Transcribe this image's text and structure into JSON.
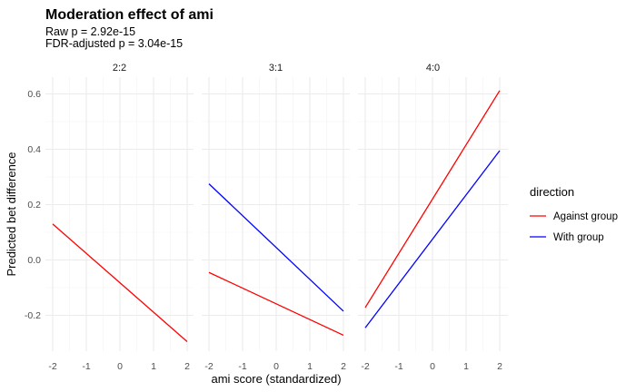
{
  "chart_data": {
    "type": "line",
    "title": "Moderation effect of ami",
    "subtitle_lines": [
      "Raw p = 2.92e-15",
      "FDR-adjusted p = 3.04e-15"
    ],
    "xlabel": "ami score (standardized)",
    "ylabel": "Predicted bet difference",
    "xlim": [
      -2,
      2
    ],
    "ylim": [
      -0.3,
      0.61
    ],
    "x_ticks": [
      "-2",
      "-1",
      "0",
      "1",
      "2"
    ],
    "y_ticks": [
      "-0.2",
      "0.0",
      "0.2",
      "0.4",
      "0.6"
    ],
    "grid": true,
    "legend": {
      "title": "direction",
      "position": "right",
      "entries": [
        {
          "name": "Against group",
          "color": "#ff0000"
        },
        {
          "name": "With group",
          "color": "#0000ff"
        }
      ]
    },
    "facets": [
      {
        "label": "2:2",
        "series": [
          {
            "name": "Against group",
            "x": [
              -2,
              2
            ],
            "y": [
              0.13,
              -0.295
            ]
          }
        ]
      },
      {
        "label": "3:1",
        "series": [
          {
            "name": "Against group",
            "x": [
              -2,
              2
            ],
            "y": [
              -0.045,
              -0.272
            ]
          },
          {
            "name": "With group",
            "x": [
              -2,
              2
            ],
            "y": [
              0.275,
              -0.185
            ]
          }
        ]
      },
      {
        "label": "4:0",
        "series": [
          {
            "name": "Against group",
            "x": [
              -2,
              2
            ],
            "y": [
              -0.172,
              0.612
            ]
          },
          {
            "name": "With group",
            "x": [
              -2,
              2
            ],
            "y": [
              -0.245,
              0.395
            ]
          }
        ]
      }
    ]
  }
}
